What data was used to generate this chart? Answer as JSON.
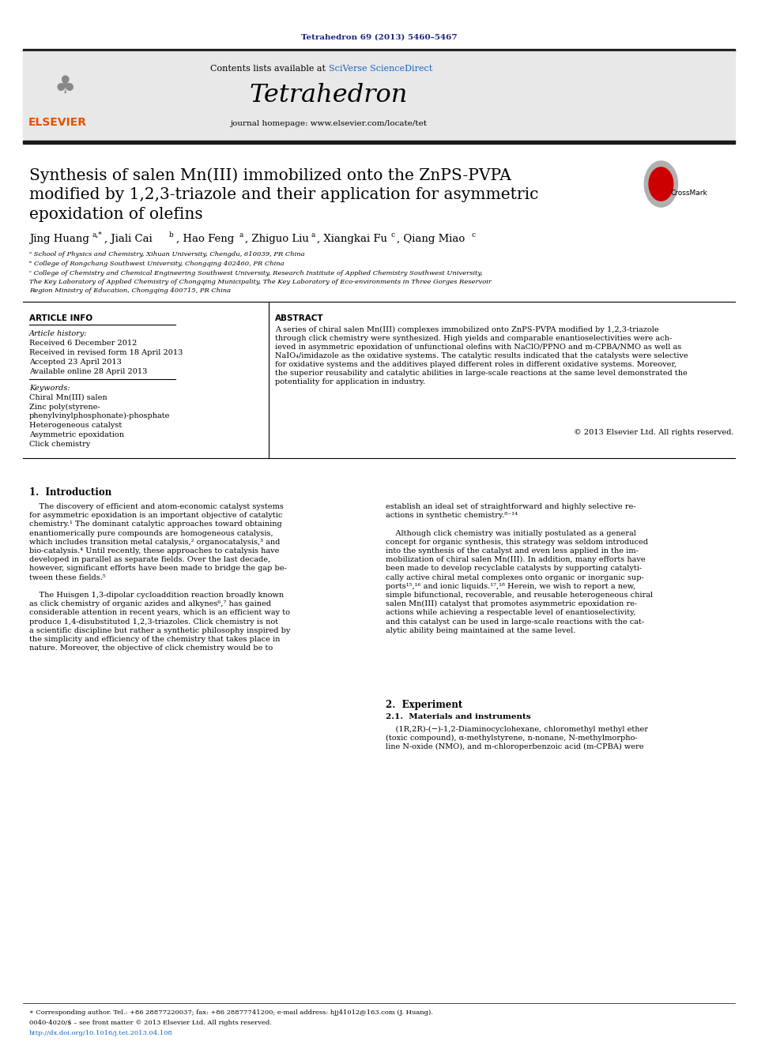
{
  "page_bg": "#ffffff",
  "top_journal_ref": "Tetrahedron 69 (2013) 5460–5467",
  "top_ref_color": "#1a237e",
  "header_bg": "#e8e8e8",
  "header_sciverse_color": "#1565c0",
  "journal_name": "Tetrahedron",
  "homepage_text": "journal homepage: www.elsevier.com/locate/tet",
  "thick_line_color": "#1a1a1a",
  "title_line1": "Synthesis of salen Mn(III) immobilized onto the ZnPS-PVPA",
  "title_line2": "modified by 1,2,3-triazole and their application for asymmetric",
  "title_line3": "epoxidation of olefins",
  "author_name1": "Jing Huang",
  "author_sup1": "a,*",
  "author_name2": ", Jiali Cai",
  "author_sup2": "b",
  "author_name3": ", Hao Feng",
  "author_sup3": "a",
  "author_name4": ", Zhiguo Liu",
  "author_sup4": "a",
  "author_name5": ", Xiangkai Fu",
  "author_sup5": "c",
  "author_name6": ", Qiang Miao",
  "author_sup6": "c",
  "affil_a": "ᵃ School of Physics and Chemistry, Xihuan University, Chengdu, 610039, PR China",
  "affil_b": "ᵇ College of Rongchang Southwest University, Chongqing 402460, PR China",
  "affil_c1": "ᶜ College of Chemistry and Chemical Engineering Southwest University, Research Institute of Applied Chemistry Southwest University,",
  "affil_c2": "The Key Laboratory of Applied Chemistry of Chongqing Municipality, The Key Laboratory of Eco-environments in Three Gorges Reservoir",
  "affil_c3": "Region Ministry of Education, Chongqing 400715, PR China",
  "article_info_title": "ARTICLE INFO",
  "abstract_title": "ABSTRACT",
  "article_history_label": "Article history:",
  "received1": "Received 6 December 2012",
  "received2": "Received in revised form 18 April 2013",
  "accepted": "Accepted 23 April 2013",
  "available": "Available online 28 April 2013",
  "keywords_label": "Keywords:",
  "kw1": "Chiral Mn(III) salen",
  "kw2a": "Zinc poly(styrene-",
  "kw2b": "phenylvinylphosphonate)-phosphate",
  "kw3": "Heterogeneous catalyst",
  "kw4": "Asymmetric epoxidation",
  "kw5": "Click chemistry",
  "abstract_text_line1": "A series of chiral salen Mn(III) complexes immobilized onto ZnPS-PVPA modified by 1,2,3-triazole",
  "abstract_text_line2": "through click chemistry were synthesized. High yields and comparable enantioselectivities were ach-",
  "abstract_text_line3": "ieved in asymmetric epoxidation of unfunctional olefins with NaClO/PPNO and m-CPBA/NMO as well as",
  "abstract_text_line4": "NaIO₄/imidazole as the oxidative systems. The catalytic results indicated that the catalysts were selective",
  "abstract_text_line5": "for oxidative systems and the additives played different roles in different oxidative systems. Moreover,",
  "abstract_text_line6": "the superior reusability and catalytic abilities in large-scale reactions at the same level demonstrated the",
  "abstract_text_line7": "potentiality for application in industry.",
  "copyright": "© 2013 Elsevier Ltd. All rights reserved.",
  "intro_heading": "1.  Introduction",
  "intro_left_line1": "    The discovery of efficient and atom-economic catalyst systems",
  "intro_left_line2": "for asymmetric epoxidation is an important objective of catalytic",
  "intro_left_line3": "chemistry.¹ The dominant catalytic approaches toward obtaining",
  "intro_left_line4": "enantiomerically pure compounds are homogeneous catalysis,",
  "intro_left_line5": "which includes transition metal catalysis,² organocatalysis,³ and",
  "intro_left_line6": "bio-catalysis.⁴ Until recently, these approaches to catalysis have",
  "intro_left_line7": "developed in parallel as separate fields. Over the last decade,",
  "intro_left_line8": "however, significant efforts have been made to bridge the gap be-",
  "intro_left_line9": "tween these fields.⁵",
  "intro_left_line10": "    The Huisgen 1,3-dipolar cycloaddition reaction broadly known",
  "intro_left_line11": "as click chemistry of organic azides and alkynes⁶,⁷ has gained",
  "intro_left_line12": "considerable attention in recent years, which is an efficient way to",
  "intro_left_line13": "produce 1,4-disubstituted 1,2,3-triazoles. Click chemistry is not",
  "intro_left_line14": "a scientific discipline but rather a synthetic philosophy inspired by",
  "intro_left_line15": "the simplicity and efficiency of the chemistry that takes place in",
  "intro_left_line16": "nature. Moreover, the objective of click chemistry would be to",
  "intro_right_line1": "establish an ideal set of straightforward and highly selective re-",
  "intro_right_line2": "actions in synthetic chemistry.⁸⁻¹⁴",
  "intro_right_line3": "    Although click chemistry was initially postulated as a general",
  "intro_right_line4": "concept for organic synthesis, this strategy was seldom introduced",
  "intro_right_line5": "into the synthesis of the catalyst and even less applied in the im-",
  "intro_right_line6": "mobilization of chiral salen Mn(III). In addition, many efforts have",
  "intro_right_line7": "been made to develop recyclable catalysts by supporting catalyti-",
  "intro_right_line8": "cally active chiral metal complexes onto organic or inorganic sup-",
  "intro_right_line9": "ports¹⁵,¹⁶ and ionic liquids.¹⁷,¹⁸ Herein, we wish to report a new,",
  "intro_right_line10": "simple bifunctional, recoverable, and reusable heterogeneous chiral",
  "intro_right_line11": "salen Mn(III) catalyst that promotes asymmetric epoxidation re-",
  "intro_right_line12": "actions while achieving a respectable level of enantioselectivity,",
  "intro_right_line13": "and this catalyst can be used in large-scale reactions with the cat-",
  "intro_right_line14": "alytic ability being maintained at the same level.",
  "section2_heading": "2.  Experiment",
  "section21_heading": "2.1.  Materials and instruments",
  "section21_line1": "    (1R,2R)-(−)-1,2-Diaminocyclohexane, chloromethyl methyl ether",
  "section21_line2": "(toxic compound), α-methylstyrene, n-nonane, N-methylmorpho-",
  "section21_line3": "line N-oxide (NMO), and m-chloroperbenzoic acid (m-CPBA) were",
  "footer_corr": "∗ Corresponding author. Tel.: +86 28877220037; fax: +86 28877741200; e-mail address: hjj41012@163.com (J. Huang).",
  "footer_issn": "0040-4020/$ – see front matter © 2013 Elsevier Ltd. All rights reserved.",
  "footer_doi": "http://dx.doi.org/10.1016/j.tet.2013.04.108",
  "footer_doi_color": "#1565c0",
  "elsevier_color": "#e65100",
  "crossmark_color": "#cc0000"
}
